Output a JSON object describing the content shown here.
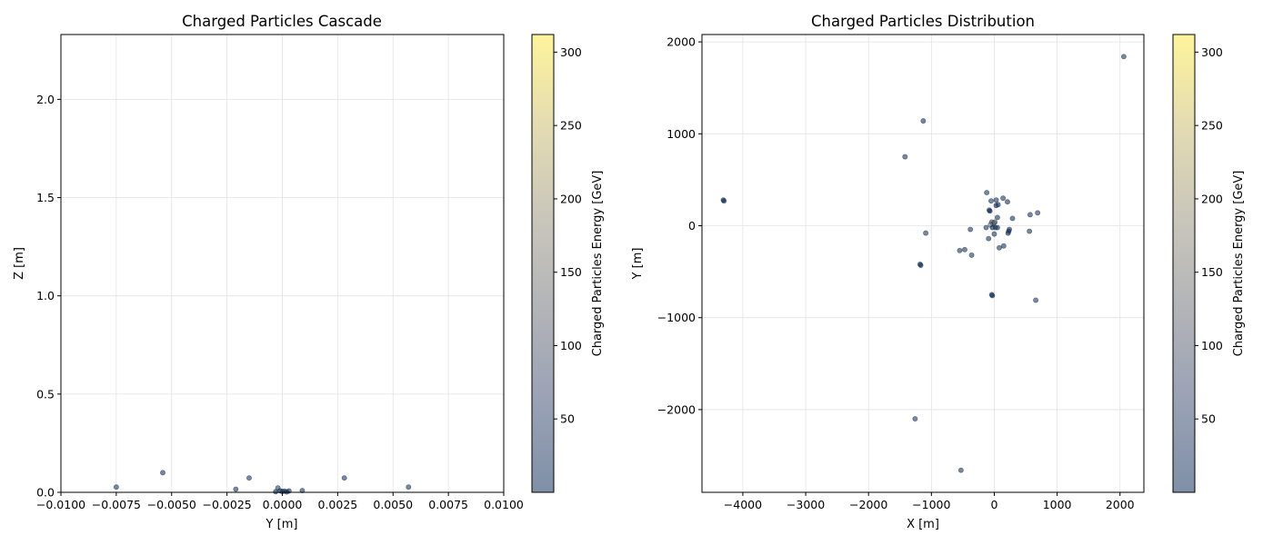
{
  "colorbar": {
    "label": "Charged Particles Energy [GeV]",
    "range": [
      0,
      312
    ],
    "ticks": [
      50,
      100,
      150,
      200,
      250,
      300
    ],
    "colormap": [
      "#00224e",
      "#35456c",
      "#666970",
      "#948e77",
      "#c8b866",
      "#fee838"
    ],
    "alpha": 0.5
  },
  "chart_data": [
    {
      "type": "scatter",
      "title": "Charged Particles Cascade",
      "xlabel": "Y [m]",
      "ylabel": "Z [m]",
      "xlim": [
        -0.01,
        0.01
      ],
      "ylim": [
        0,
        2.33
      ],
      "xticks": [
        -0.01,
        -0.0075,
        -0.005,
        -0.0025,
        0.0,
        0.0025,
        0.005,
        0.0075,
        0.01
      ],
      "xtick_labels": [
        "−0.0100",
        "−0.0075",
        "−0.0050",
        "−0.0025",
        "0.0000",
        "0.0025",
        "0.0050",
        "0.0075",
        "0.0100"
      ],
      "yticks": [
        0.0,
        0.5,
        1.0,
        1.5,
        2.0
      ],
      "ytick_labels": [
        "0.0",
        "0.5",
        "1.0",
        "1.5",
        "2.0"
      ],
      "grid": true,
      "points": [
        {
          "x": -0.0075,
          "y": 0.027,
          "e": 40
        },
        {
          "x": -0.0054,
          "y": 0.1,
          "e": 35
        },
        {
          "x": -0.0015,
          "y": 0.073,
          "e": 40
        },
        {
          "x": -0.0021,
          "y": 0.016,
          "e": 35
        },
        {
          "x": -0.0002,
          "y": 0.022,
          "e": 60
        },
        {
          "x": -0.0001,
          "y": 0.008,
          "e": 15
        },
        {
          "x": 0.0,
          "y": 0.004,
          "e": 5
        },
        {
          "x": 0.0001,
          "y": 0.006,
          "e": 10
        },
        {
          "x": 0.0003,
          "y": 0.007,
          "e": 20
        },
        {
          "x": 0.0002,
          "y": 0.002,
          "e": 5
        },
        {
          "x": -0.0003,
          "y": 0.003,
          "e": 8
        },
        {
          "x": 0.0009,
          "y": 0.009,
          "e": 35
        },
        {
          "x": 0.0028,
          "y": 0.073,
          "e": 40
        },
        {
          "x": 0.0057,
          "y": 0.027,
          "e": 40
        }
      ]
    },
    {
      "type": "scatter",
      "title": "Charged Particles Distribution",
      "xlabel": "X [m]",
      "ylabel": "Y [m]",
      "xlim": [
        -4650,
        2380
      ],
      "ylim": [
        -2900,
        2080
      ],
      "xticks": [
        -4000,
        -3000,
        -2000,
        -1000,
        0,
        1000,
        2000
      ],
      "xtick_labels": [
        "−4000",
        "−3000",
        "−2000",
        "−1000",
        "0",
        "1000",
        "2000"
      ],
      "yticks": [
        -2000,
        -1000,
        0,
        1000,
        2000
      ],
      "ytick_labels": [
        "−2000",
        "−1000",
        "0",
        "1000",
        "2000"
      ],
      "grid": true,
      "points": [
        {
          "x": 2060,
          "y": 1840,
          "e": 40
        },
        {
          "x": -1130,
          "y": 1140,
          "e": 35
        },
        {
          "x": -1420,
          "y": 750,
          "e": 40
        },
        {
          "x": -4310,
          "y": 280,
          "e": 5
        },
        {
          "x": -4300,
          "y": 270,
          "e": 10
        },
        {
          "x": -120,
          "y": 360,
          "e": 40
        },
        {
          "x": 140,
          "y": 300,
          "e": 35
        },
        {
          "x": 30,
          "y": 280,
          "e": 35
        },
        {
          "x": -50,
          "y": 270,
          "e": 40
        },
        {
          "x": 210,
          "y": 260,
          "e": 30
        },
        {
          "x": 30,
          "y": 220,
          "e": 10
        },
        {
          "x": 60,
          "y": 230,
          "e": 20
        },
        {
          "x": -80,
          "y": 170,
          "e": 10
        },
        {
          "x": -70,
          "y": 160,
          "e": 5
        },
        {
          "x": 570,
          "y": 120,
          "e": 40
        },
        {
          "x": 690,
          "y": 140,
          "e": 40
        },
        {
          "x": 290,
          "y": 80,
          "e": 35
        },
        {
          "x": 50,
          "y": 90,
          "e": 30
        },
        {
          "x": -40,
          "y": 40,
          "e": 60
        },
        {
          "x": -20,
          "y": 20,
          "e": 120
        },
        {
          "x": 10,
          "y": 40,
          "e": 200
        },
        {
          "x": -60,
          "y": 10,
          "e": 150
        },
        {
          "x": 0,
          "y": 30,
          "e": 80
        },
        {
          "x": -30,
          "y": -20,
          "e": 10
        },
        {
          "x": 20,
          "y": -20,
          "e": 15
        },
        {
          "x": 50,
          "y": -20,
          "e": 25
        },
        {
          "x": -130,
          "y": -20,
          "e": 40
        },
        {
          "x": -380,
          "y": -40,
          "e": 40
        },
        {
          "x": 240,
          "y": -40,
          "e": 20
        },
        {
          "x": 230,
          "y": -60,
          "e": 15
        },
        {
          "x": 220,
          "y": -80,
          "e": 10
        },
        {
          "x": 0,
          "y": -90,
          "e": 40
        },
        {
          "x": -1090,
          "y": -80,
          "e": 40
        },
        {
          "x": 560,
          "y": -60,
          "e": 40
        },
        {
          "x": -90,
          "y": -140,
          "e": 40
        },
        {
          "x": 150,
          "y": -220,
          "e": 35
        },
        {
          "x": 80,
          "y": -240,
          "e": 40
        },
        {
          "x": -470,
          "y": -260,
          "e": 40
        },
        {
          "x": -550,
          "y": -270,
          "e": 40
        },
        {
          "x": -360,
          "y": -320,
          "e": 40
        },
        {
          "x": -1180,
          "y": -420,
          "e": 10
        },
        {
          "x": -1170,
          "y": -430,
          "e": 15
        },
        {
          "x": -40,
          "y": -750,
          "e": 10
        },
        {
          "x": -30,
          "y": -760,
          "e": 15
        },
        {
          "x": 660,
          "y": -810,
          "e": 40
        },
        {
          "x": -1260,
          "y": -2100,
          "e": 40
        },
        {
          "x": -530,
          "y": -2660,
          "e": 40
        }
      ]
    }
  ]
}
